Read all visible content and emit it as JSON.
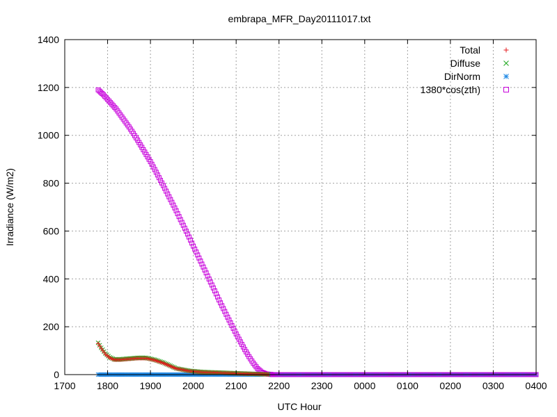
{
  "chart_data": {
    "type": "scatter",
    "title": "embrapa_MFR_Day20111017.txt",
    "xlabel": "UTC Hour",
    "ylabel": "Irradiance (W/m2)",
    "xlim": [
      17,
      28
    ],
    "ylim": [
      0,
      1400
    ],
    "grid": true,
    "legend_position": "top-right",
    "x_ticks": [
      {
        "v": 17,
        "label": "1700"
      },
      {
        "v": 18,
        "label": "1800"
      },
      {
        "v": 19,
        "label": "1900"
      },
      {
        "v": 20,
        "label": "2000"
      },
      {
        "v": 21,
        "label": "2100"
      },
      {
        "v": 22,
        "label": "2200"
      },
      {
        "v": 23,
        "label": "2300"
      },
      {
        "v": 24,
        "label": "0000"
      },
      {
        "v": 25,
        "label": "0100"
      },
      {
        "v": 26,
        "label": "0200"
      },
      {
        "v": 27,
        "label": "0300"
      },
      {
        "v": 28,
        "label": "0400"
      }
    ],
    "y_ticks": [
      0,
      200,
      400,
      600,
      800,
      1000,
      1200,
      1400
    ],
    "series": [
      {
        "name": "Total",
        "marker": "plus",
        "color": "#e41a1c",
        "x": [
          17.78,
          17.85,
          17.95,
          18.05,
          18.15,
          18.3,
          18.5,
          18.7,
          18.9,
          19.1,
          19.3,
          19.6,
          19.9,
          20.2,
          20.5,
          20.8,
          21.1,
          21.4,
          21.6,
          21.75
        ],
        "y": [
          130,
          110,
          85,
          70,
          62,
          62,
          65,
          68,
          68,
          60,
          48,
          25,
          15,
          10,
          8,
          6,
          4,
          3,
          2,
          1
        ]
      },
      {
        "name": "Diffuse",
        "marker": "cross",
        "color": "#1ca71c",
        "x": [
          17.78,
          17.85,
          17.95,
          18.05,
          18.15,
          18.3,
          18.5,
          18.7,
          18.9,
          19.1,
          19.3,
          19.6,
          19.9,
          20.2,
          20.5,
          20.8,
          21.1,
          21.4,
          21.6,
          21.75
        ],
        "y": [
          133,
          112,
          88,
          72,
          64,
          64,
          67,
          70,
          70,
          62,
          50,
          26,
          16,
          11,
          9,
          7,
          5,
          3,
          2,
          1
        ]
      },
      {
        "name": "DirNorm",
        "marker": "star",
        "color": "#1e88e5",
        "x": [
          17.78,
          18.0,
          18.5,
          19.0,
          19.5,
          20.0,
          20.5,
          21.0,
          21.5,
          21.8,
          22.0,
          22.5,
          23.0,
          23.5,
          24.0,
          24.5,
          25.0,
          25.5,
          26.0,
          26.5,
          27.0,
          27.5,
          28.0
        ],
        "y": [
          0,
          0,
          0,
          0,
          0,
          0,
          0,
          0,
          0,
          2,
          0,
          0,
          0,
          0,
          0,
          0,
          0,
          0,
          0,
          0,
          0,
          0,
          0
        ]
      },
      {
        "name": "1380*cos(zth)",
        "marker": "square",
        "color": "#c800dc",
        "x": [
          17.78,
          17.9,
          18.0,
          18.1,
          18.2,
          18.3,
          18.4,
          18.5,
          18.6,
          18.7,
          18.8,
          18.9,
          19.0,
          19.1,
          19.2,
          19.3,
          19.4,
          19.5,
          19.6,
          19.7,
          19.8,
          19.9,
          20.0,
          20.1,
          20.2,
          20.3,
          20.4,
          20.5,
          20.6,
          20.7,
          20.8,
          20.9,
          21.0,
          21.1,
          21.2,
          21.3,
          21.4,
          21.5,
          21.6,
          21.7,
          21.8,
          21.85,
          22.0,
          22.5,
          23.0,
          23.5,
          24.0,
          24.5,
          25.0,
          25.5,
          26.0,
          26.5,
          27.0,
          27.5,
          28.0
        ],
        "y": [
          1190,
          1170,
          1150,
          1130,
          1110,
          1085,
          1060,
          1035,
          1008,
          980,
          950,
          920,
          890,
          857,
          823,
          790,
          755,
          720,
          685,
          648,
          612,
          575,
          537,
          500,
          462,
          425,
          387,
          350,
          312,
          276,
          240,
          205,
          170,
          137,
          105,
          75,
          48,
          25,
          10,
          3,
          1,
          0,
          0,
          0,
          0,
          0,
          0,
          0,
          0,
          0,
          0,
          0,
          0,
          0,
          0
        ]
      }
    ]
  }
}
